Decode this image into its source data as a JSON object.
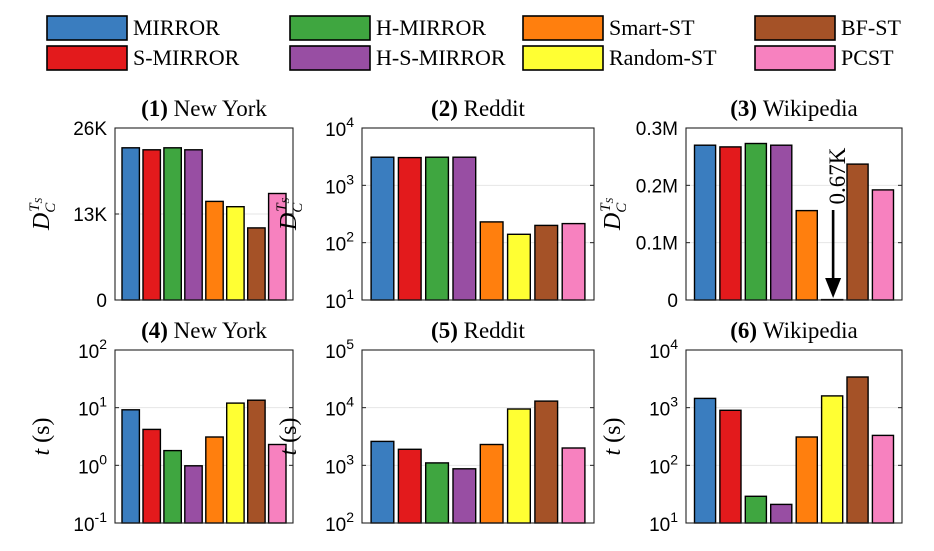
{
  "legend": [
    {
      "name": "MIRROR",
      "color": "#3a7dbf"
    },
    {
      "name": "H-MIRROR",
      "color": "#3fa640"
    },
    {
      "name": "Smart-ST",
      "color": "#ff7f0e"
    },
    {
      "name": "BF-ST",
      "color": "#a55227"
    },
    {
      "name": "S-MIRROR",
      "color": "#e31a1c"
    },
    {
      "name": "H-S-MIRROR",
      "color": "#984ea3"
    },
    {
      "name": "Random-ST",
      "color": "#ffff33"
    },
    {
      "name": "PCST",
      "color": "#f781bf"
    }
  ],
  "chart_data": [
    {
      "type": "bar",
      "scale": "linear",
      "title_num": "(1)",
      "title": "New York",
      "ylabel": "D_C^{T_S}",
      "ylim": [
        0,
        26000
      ],
      "ticks": [
        0,
        13000,
        26000
      ],
      "tick_labels": [
        "0",
        "13K",
        "26K"
      ],
      "series": [
        "MIRROR",
        "S-MIRROR",
        "H-MIRROR",
        "H-S-MIRROR",
        "Smart-ST",
        "Random-ST",
        "BF-ST",
        "PCST"
      ],
      "values": [
        23000,
        22700,
        23000,
        22700,
        14900,
        14100,
        10900,
        16100
      ]
    },
    {
      "type": "bar",
      "scale": "log",
      "title_num": "(2)",
      "title": "Reddit",
      "ylabel": "D_C^{T_S}",
      "ylim": [
        10,
        10000
      ],
      "ticks": [
        10,
        100,
        1000,
        10000
      ],
      "tick_labels": [
        [
          "10",
          "1"
        ],
        [
          "10",
          "2"
        ],
        [
          "10",
          "3"
        ],
        [
          "10",
          "4"
        ]
      ],
      "series": [
        "MIRROR",
        "S-MIRROR",
        "H-MIRROR",
        "H-S-MIRROR",
        "Smart-ST",
        "Random-ST",
        "BF-ST",
        "PCST"
      ],
      "values": [
        3100,
        3050,
        3100,
        3100,
        230,
        140,
        200,
        215
      ]
    },
    {
      "type": "bar",
      "scale": "linear",
      "title_num": "(3)",
      "title": "Wikipedia",
      "ylabel": "D_C^{T_S}",
      "ylim": [
        0,
        300000
      ],
      "ticks": [
        0,
        100000,
        200000,
        300000
      ],
      "tick_labels": [
        "0",
        "0.1M",
        "0.2M",
        "0.3M"
      ],
      "series": [
        "MIRROR",
        "S-MIRROR",
        "H-MIRROR",
        "H-S-MIRROR",
        "Smart-ST",
        "Random-ST",
        "BF-ST",
        "PCST"
      ],
      "values": [
        270000,
        267000,
        273000,
        270000,
        156000,
        670,
        237000,
        192000
      ],
      "annotation": "0.67K"
    },
    {
      "type": "bar",
      "scale": "log",
      "title_num": "(4)",
      "title": "New York",
      "ylabel": "t (s)",
      "ylim": [
        0.1,
        100
      ],
      "ticks": [
        0.1,
        1,
        10,
        100
      ],
      "tick_labels": [
        [
          "10",
          "-1"
        ],
        [
          "10",
          "0"
        ],
        [
          "10",
          "1"
        ],
        [
          "10",
          "2"
        ]
      ],
      "series": [
        "MIRROR",
        "S-MIRROR",
        "H-MIRROR",
        "H-S-MIRROR",
        "Smart-ST",
        "Random-ST",
        "BF-ST",
        "PCST"
      ],
      "values": [
        9.2,
        4.2,
        1.8,
        0.98,
        3.1,
        12,
        13.5,
        2.3
      ]
    },
    {
      "type": "bar",
      "scale": "log",
      "title_num": "(5)",
      "title": "Reddit",
      "ylabel": "t (s)",
      "ylim": [
        100,
        100000
      ],
      "ticks": [
        100,
        1000,
        10000,
        100000
      ],
      "tick_labels": [
        [
          "10",
          "2"
        ],
        [
          "10",
          "3"
        ],
        [
          "10",
          "4"
        ],
        [
          "10",
          "5"
        ]
      ],
      "series": [
        "MIRROR",
        "S-MIRROR",
        "H-MIRROR",
        "H-S-MIRROR",
        "Smart-ST",
        "Random-ST",
        "BF-ST",
        "PCST"
      ],
      "values": [
        2600,
        1900,
        1100,
        870,
        2300,
        9500,
        13000,
        2000
      ]
    },
    {
      "type": "bar",
      "scale": "log",
      "title_num": "(6)",
      "title": "Wikipedia",
      "ylabel": "t (s)",
      "ylim": [
        10,
        10000
      ],
      "ticks": [
        10,
        100,
        1000,
        10000
      ],
      "tick_labels": [
        [
          "10",
          "1"
        ],
        [
          "10",
          "2"
        ],
        [
          "10",
          "3"
        ],
        [
          "10",
          "4"
        ]
      ],
      "series": [
        "MIRROR",
        "S-MIRROR",
        "H-MIRROR",
        "H-S-MIRROR",
        "Smart-ST",
        "Random-ST",
        "BF-ST",
        "PCST"
      ],
      "values": [
        1450,
        900,
        29,
        21,
        310,
        1600,
        3400,
        330
      ]
    }
  ]
}
